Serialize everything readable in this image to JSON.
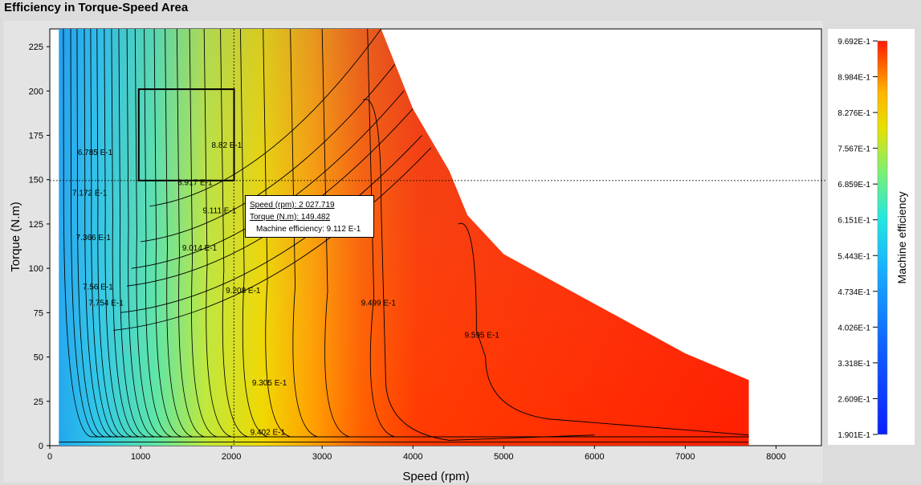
{
  "window": {
    "title": "Efficiency in Torque-Speed Area"
  },
  "chart_data": {
    "type": "heatmap",
    "title": "Efficiency in Torque-Speed Area",
    "xlabel": "Speed (rpm)",
    "ylabel": "Torque (N.m)",
    "xlim": [
      0,
      8500
    ],
    "ylim": [
      0,
      235
    ],
    "xticks": [
      "0",
      "1000",
      "2000",
      "3000",
      "4000",
      "5000",
      "6000",
      "7000",
      "8000"
    ],
    "yticks": [
      "0",
      "25",
      "50",
      "75",
      "100",
      "125",
      "150",
      "175",
      "200",
      "225"
    ],
    "grid": false,
    "max_torque_envelope": {
      "speed": [
        100,
        3650,
        4000,
        4400,
        4600,
        5000,
        6000,
        7000,
        7700
      ],
      "torque": [
        235,
        235,
        190,
        155,
        130,
        108,
        80,
        52,
        37
      ]
    },
    "contour_labels": [
      {
        "text": "6.785 E-1",
        "speed": 500,
        "torque": 164
      },
      {
        "text": "7.172 E-1",
        "speed": 440,
        "torque": 141
      },
      {
        "text": "7.366 E-1",
        "speed": 480,
        "torque": 116
      },
      {
        "text": "7.56 E-1",
        "speed": 530,
        "torque": 88
      },
      {
        "text": "7.754 E-1",
        "speed": 620,
        "torque": 79
      },
      {
        "text": "8.917 E-1",
        "speed": 1600,
        "torque": 147
      },
      {
        "text": "8.82 E-1",
        "speed": 1950,
        "torque": 168
      },
      {
        "text": "9.014 E-1",
        "speed": 1650,
        "torque": 110
      },
      {
        "text": "9.111 E-1",
        "speed": 1870,
        "torque": 131
      },
      {
        "text": "9.208 E-1",
        "speed": 2130,
        "torque": 86
      },
      {
        "text": "9.305 E-1",
        "speed": 2420,
        "torque": 34
      },
      {
        "text": "9.402 E-1",
        "speed": 2400,
        "torque": 6
      },
      {
        "text": "9.499 E-1",
        "speed": 3620,
        "torque": 79
      },
      {
        "text": "9.595 E-1",
        "speed": 4760,
        "torque": 61
      }
    ],
    "selection_box": {
      "speed": [
        980,
        2030
      ],
      "torque": [
        149.5,
        201
      ]
    },
    "crosshair": {
      "speed": 2027.719,
      "torque": 149.482
    }
  },
  "tooltip": {
    "speed": "Speed (rpm): 2 027.719",
    "torque": "Torque (N.m): 149.482",
    "efficiency": "Machine efficiency: 9.112 E-1"
  },
  "colorbar": {
    "label": "Machine efficiency",
    "ticks": [
      "9.692E-1",
      "8.984E-1",
      "8.276E-1",
      "7.567E-1",
      "6.859E-1",
      "6.151E-1",
      "5.443E-1",
      "4.734E-1",
      "4.026E-1",
      "3.318E-1",
      "2.609E-1",
      "1.901E-1"
    ],
    "colors": [
      "#ff1a00",
      "#ffb400",
      "#e8e000",
      "#7ef070",
      "#22e8e0",
      "#16b0ff",
      "#1060ff",
      "#0a20ff"
    ]
  }
}
